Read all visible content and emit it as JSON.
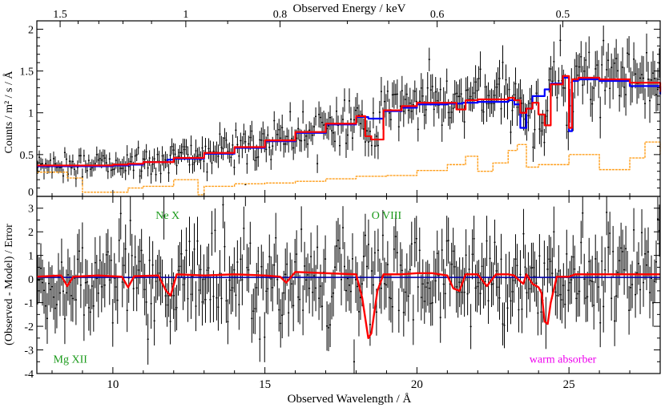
{
  "chart_data": {
    "type": "line",
    "top_axis": {
      "label": "Observed Energy / keV",
      "ticks": [
        {
          "value": 1.5,
          "label": "1.5"
        },
        {
          "value": 1.0,
          "label": "1"
        },
        {
          "value": 0.8,
          "label": "0.8"
        },
        {
          "value": 0.6,
          "label": "0.6"
        },
        {
          "value": 0.5,
          "label": "0.5"
        }
      ]
    },
    "xlabel": "Observed Wavelength / Å",
    "xlim": [
      7.5,
      28.0
    ],
    "x_ticks": [
      10,
      15,
      20,
      25
    ],
    "upper_panel": {
      "ylabel": "Counts / m² / s / Å",
      "ylim": [
        0,
        2.1
      ],
      "y_ticks": [
        {
          "value": 0,
          "label": "0"
        },
        {
          "value": 0.5,
          "label": "0.5"
        },
        {
          "value": 1,
          "label": "1"
        },
        {
          "value": 1.5,
          "label": "1.5"
        },
        {
          "value": 2,
          "label": "2"
        }
      ],
      "series": [
        {
          "color": "#0000ff",
          "style": "step",
          "x": [
            7.5,
            8.0,
            9.0,
            10.0,
            10.5,
            11.0,
            11.8,
            12.0,
            13.0,
            14.0,
            15.0,
            16.0,
            17.0,
            18.0,
            18.4,
            18.9,
            19.5,
            20.0,
            21.0,
            21.5,
            22.0,
            23.0,
            23.2,
            23.4,
            23.6,
            23.8,
            24.2,
            24.4,
            24.8,
            25.0,
            25.1,
            25.3,
            25.5,
            26.0,
            27.0,
            28.0
          ],
          "values": [
            0.36,
            0.36,
            0.36,
            0.37,
            0.38,
            0.41,
            0.44,
            0.45,
            0.51,
            0.58,
            0.66,
            0.76,
            0.86,
            0.95,
            0.93,
            1.02,
            1.06,
            1.1,
            1.11,
            1.12,
            1.13,
            1.15,
            1.1,
            0.82,
            1.05,
            1.2,
            1.28,
            1.35,
            1.42,
            0.78,
            1.38,
            1.4,
            1.4,
            1.38,
            1.32,
            1.22
          ]
        },
        {
          "color": "#ff0000",
          "style": "step",
          "x": [
            7.5,
            8.0,
            9.0,
            10.0,
            10.5,
            11.0,
            11.8,
            12.0,
            13.0,
            14.0,
            15.0,
            16.0,
            17.0,
            18.0,
            18.3,
            18.5,
            18.9,
            19.5,
            20.0,
            21.0,
            21.3,
            21.6,
            22.0,
            23.0,
            23.2,
            23.4,
            23.6,
            23.8,
            24.0,
            24.2,
            24.4,
            24.8,
            25.0,
            25.1,
            25.3,
            25.5,
            26.0,
            27.0,
            28.0
          ],
          "values": [
            0.37,
            0.37,
            0.37,
            0.38,
            0.39,
            0.41,
            0.41,
            0.46,
            0.52,
            0.59,
            0.67,
            0.77,
            0.87,
            0.96,
            0.72,
            0.68,
            1.03,
            1.08,
            1.12,
            1.12,
            1.04,
            1.15,
            1.16,
            1.18,
            1.15,
            1.0,
            1.05,
            1.12,
            0.98,
            0.85,
            1.34,
            1.44,
            0.82,
            1.4,
            1.42,
            1.42,
            1.4,
            1.36,
            1.25
          ]
        },
        {
          "color": "#ff9f1c",
          "style": "step",
          "x": [
            7.5,
            8.5,
            9.0,
            10.0,
            10.5,
            11.0,
            12.0,
            12.8,
            13.0,
            14.0,
            15.0,
            16.0,
            17.0,
            18.0,
            19.0,
            20.0,
            21.0,
            21.6,
            22.0,
            22.5,
            23.0,
            23.3,
            23.6,
            24.0,
            25.0,
            26.0,
            27.0,
            27.5,
            28.0
          ],
          "values": [
            0.29,
            0.22,
            0.05,
            0.05,
            0.1,
            0.12,
            0.2,
            0.02,
            0.12,
            0.15,
            0.16,
            0.18,
            0.21,
            0.24,
            0.25,
            0.31,
            0.38,
            0.48,
            0.3,
            0.4,
            0.55,
            0.62,
            0.35,
            0.38,
            0.5,
            0.32,
            0.46,
            0.65,
            0.5
          ]
        }
      ]
    },
    "lower_panel": {
      "ylabel": "(Observed - Model) / Error",
      "ylim": [
        -4,
        3.5
      ],
      "y_ticks": [
        {
          "value": -4,
          "label": "-4"
        },
        {
          "value": -3,
          "label": "-3"
        },
        {
          "value": -2,
          "label": "-2"
        },
        {
          "value": -1,
          "label": "-1"
        },
        {
          "value": 0,
          "label": "0"
        },
        {
          "value": 1,
          "label": "1"
        },
        {
          "value": 2,
          "label": "2"
        },
        {
          "value": 3,
          "label": "3"
        }
      ],
      "series": [
        {
          "color": "#0000aa",
          "style": "line",
          "x": [
            7.5,
            28.0
          ],
          "values": [
            0.07,
            0.07
          ]
        },
        {
          "color": "#ff0000",
          "style": "line",
          "x": [
            7.5,
            8.3,
            8.5,
            8.7,
            9.5,
            10.3,
            10.5,
            10.7,
            11.5,
            11.75,
            11.9,
            12.1,
            13.0,
            14.0,
            15.0,
            15.5,
            15.7,
            16.0,
            17.0,
            18.0,
            18.2,
            18.4,
            18.5,
            18.7,
            18.9,
            19.5,
            20.0,
            20.5,
            21.0,
            21.2,
            21.4,
            21.6,
            22.0,
            22.3,
            22.6,
            23.0,
            23.2,
            23.4,
            23.5,
            23.6,
            23.8,
            24.0,
            24.1,
            24.2,
            24.3,
            24.4,
            24.6,
            25.0,
            25.2,
            26.0,
            27.0,
            28.0
          ],
          "values": [
            0.1,
            0.15,
            -0.3,
            0.1,
            0.15,
            0.1,
            -0.35,
            0.12,
            0.15,
            -0.5,
            -0.7,
            0.2,
            0.15,
            0.2,
            0.15,
            0.1,
            -0.15,
            0.3,
            0.25,
            0.2,
            -0.8,
            -2.5,
            -2.3,
            -0.5,
            0.2,
            0.2,
            0.25,
            0.25,
            0.15,
            -0.4,
            -0.5,
            0.2,
            0.2,
            -0.3,
            0.2,
            0.2,
            0.15,
            -0.1,
            -0.2,
            0.2,
            -0.2,
            -0.35,
            -0.6,
            -1.8,
            -1.9,
            -1.0,
            0.1,
            0.1,
            0.2,
            0.2,
            0.2,
            0.2
          ]
        }
      ],
      "annotations": [
        {
          "text": "Ne X",
          "x": 11.8,
          "y": 2.55,
          "color": "#1a9a1a"
        },
        {
          "text": "O VIII",
          "x": 19.0,
          "y": 2.55,
          "color": "#1a9a1a"
        },
        {
          "text": "Mg XII",
          "x": 8.6,
          "y": -3.55,
          "color": "#1a9a1a"
        },
        {
          "text": "warm absorber",
          "x": 24.8,
          "y": -3.55,
          "color": "#ee00ee"
        }
      ]
    },
    "grid": false
  }
}
